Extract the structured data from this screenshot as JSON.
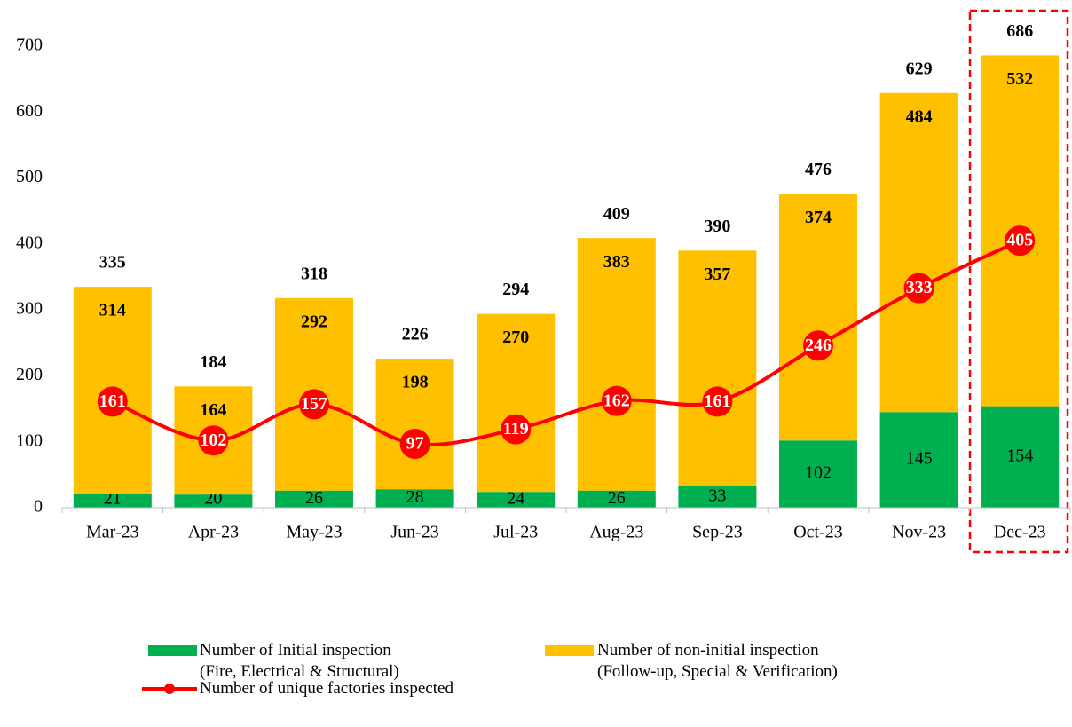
{
  "chart_data": {
    "type": "stacked_bar_line",
    "categories": [
      "Mar-23",
      "Apr-23",
      "May-23",
      "Jun-23",
      "Jul-23",
      "Aug-23",
      "Sep-23",
      "Oct-23",
      "Nov-23",
      "Dec-23"
    ],
    "series": [
      {
        "name": "Number of Initial inspection\n(Fire, Electrical & Structural)",
        "color": "#00b050",
        "values": [
          21,
          20,
          26,
          28,
          24,
          26,
          33,
          102,
          145,
          154
        ]
      },
      {
        "name": "Number of non-initial inspection\n(Follow-up, Special & Verification)",
        "color": "#ffc000",
        "values": [
          314,
          164,
          292,
          198,
          270,
          383,
          357,
          374,
          484,
          532
        ]
      },
      {
        "name": "Number of unique factories inspected",
        "color": "#ff0000",
        "type": "line",
        "values": [
          161,
          102,
          157,
          97,
          119,
          162,
          161,
          246,
          333,
          405
        ]
      }
    ],
    "totals": [
      335,
      184,
      318,
      226,
      294,
      409,
      390,
      476,
      629,
      686
    ],
    "ylim": [
      0,
      700
    ],
    "yticks": [
      0,
      100,
      200,
      300,
      400,
      500,
      600,
      700
    ]
  }
}
